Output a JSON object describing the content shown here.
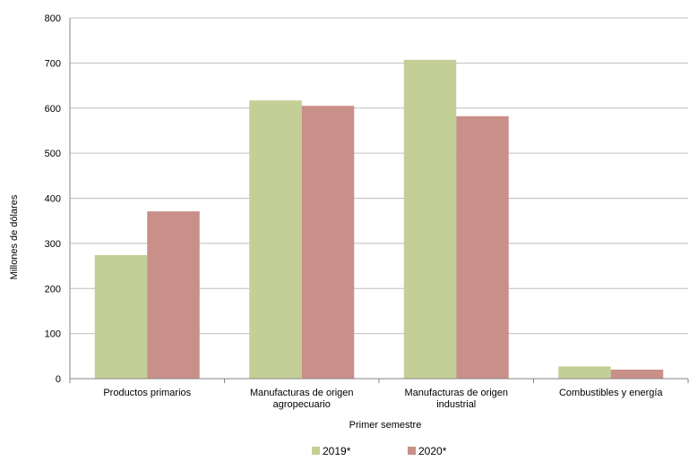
{
  "chart_data": {
    "type": "bar",
    "title": "",
    "xlabel": "Primer semestre",
    "ylabel": "Millones de dólares",
    "ylim": [
      0,
      800
    ],
    "yticks": [
      0,
      100,
      200,
      300,
      400,
      500,
      600,
      700,
      800
    ],
    "grid": true,
    "legend_position": "bottom",
    "categories": [
      [
        "Productos primarios"
      ],
      [
        "Manufacturas de origen",
        "agropecuario"
      ],
      [
        "Manufacturas de origen",
        "industrial"
      ],
      [
        "Combustibles y energía"
      ]
    ],
    "series": [
      {
        "name": "2019*",
        "color": "#c4cf96",
        "values": [
          274,
          617,
          707,
          27
        ]
      },
      {
        "name": "2020*",
        "color": "#c98f89",
        "values": [
          371,
          605,
          582,
          20
        ]
      }
    ]
  }
}
